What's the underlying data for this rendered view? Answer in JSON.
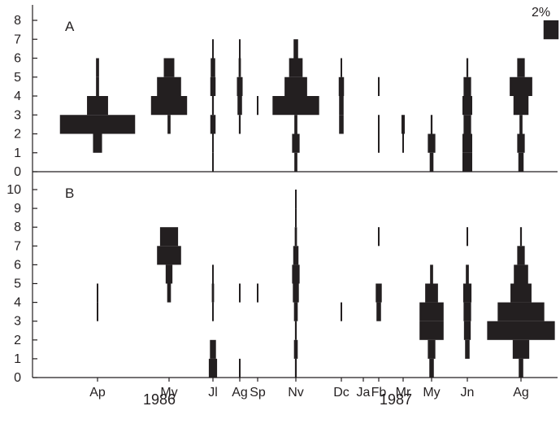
{
  "chart_data": {
    "type": "kite",
    "scale_label": "2%",
    "x_categories": [
      "Ap",
      "My",
      "Jl",
      "Ag",
      "Sp",
      "Nv",
      "Dc",
      "Ja",
      "Fb",
      "Mr",
      "My",
      "Jn",
      "Ag"
    ],
    "years": [
      "1986",
      "1987"
    ],
    "grid": false,
    "panels": [
      {
        "label": "A",
        "ylim": [
          0,
          8
        ],
        "yticks": [
          0,
          1,
          2,
          3,
          4,
          5,
          6,
          7,
          8
        ],
        "scale_bar": {
          "y_range": [
            7,
            8
          ],
          "value_percent": 2
        },
        "kites": [
          {
            "x": "Ap",
            "bins": [
              [
                1,
                2,
                0.6
              ],
              [
                2,
                3,
                5.0
              ],
              [
                3,
                4,
                1.4
              ],
              [
                4,
                5,
                0.2
              ],
              [
                5,
                6,
                0.2
              ]
            ]
          },
          {
            "x": "My",
            "bins": [
              [
                2,
                3,
                0.2
              ],
              [
                3,
                4,
                2.4
              ],
              [
                4,
                5,
                1.6
              ],
              [
                5,
                6,
                0.7
              ]
            ]
          },
          {
            "x": "Jl",
            "bins": [
              [
                0,
                1,
                0.06
              ],
              [
                1,
                2,
                0.1
              ],
              [
                2,
                3,
                0.35
              ],
              [
                3,
                4,
                0.12
              ],
              [
                4,
                5,
                0.35
              ],
              [
                5,
                6,
                0.3
              ],
              [
                6,
                7,
                0.1
              ]
            ]
          },
          {
            "x": "Ag",
            "bins": [
              [
                2,
                3,
                0.12
              ],
              [
                3,
                4,
                0.3
              ],
              [
                4,
                5,
                0.38
              ],
              [
                5,
                6,
                0.15
              ],
              [
                6,
                7,
                0.1
              ]
            ]
          },
          {
            "x": "Sp",
            "bins": [
              [
                3,
                4,
                0.1
              ]
            ]
          },
          {
            "x": "Nv",
            "bins": [
              [
                0,
                1,
                0.2
              ],
              [
                1,
                2,
                0.5
              ],
              [
                2,
                3,
                0.2
              ],
              [
                3,
                4,
                3.1
              ],
              [
                4,
                5,
                1.5
              ],
              [
                5,
                6,
                0.9
              ],
              [
                6,
                7,
                0.3
              ]
            ]
          },
          {
            "x": "Dc",
            "bins": [
              [
                2,
                3,
                0.3
              ],
              [
                3,
                4,
                0.3
              ],
              [
                4,
                5,
                0.35
              ],
              [
                5,
                6,
                0.1
              ]
            ]
          },
          {
            "x": "Fb",
            "bins": [
              [
                1,
                2,
                0.06
              ],
              [
                2,
                3,
                0.06
              ],
              [
                4,
                5,
                0.06
              ]
            ]
          },
          {
            "x": "Mr",
            "bins": [
              [
                1,
                2,
                0.06
              ],
              [
                2,
                3,
                0.22
              ]
            ]
          },
          {
            "x": "My",
            "bins": [
              [
                0,
                1,
                0.25
              ],
              [
                1,
                2,
                0.5
              ],
              [
                2,
                3,
                0.12
              ]
            ]
          },
          {
            "x": "Jn",
            "bins": [
              [
                0,
                1,
                0.65
              ],
              [
                1,
                2,
                0.65
              ],
              [
                2,
                3,
                0.5
              ],
              [
                3,
                4,
                0.65
              ],
              [
                4,
                5,
                0.5
              ],
              [
                5,
                6,
                0.12
              ]
            ]
          },
          {
            "x": "Ag",
            "bins": [
              [
                0,
                1,
                0.35
              ],
              [
                1,
                2,
                0.5
              ],
              [
                2,
                3,
                0.2
              ],
              [
                3,
                4,
                1.0
              ],
              [
                4,
                5,
                1.5
              ],
              [
                5,
                6,
                0.5
              ]
            ]
          }
        ]
      },
      {
        "label": "B",
        "ylim": [
          0,
          10
        ],
        "yticks": [
          0,
          1,
          2,
          3,
          4,
          5,
          6,
          7,
          8,
          9,
          10
        ],
        "kites": [
          {
            "x": "Ap",
            "bins": [
              [
                3,
                4,
                0.06
              ],
              [
                4,
                5,
                0.08
              ]
            ]
          },
          {
            "x": "My",
            "bins": [
              [
                4,
                5,
                0.25
              ],
              [
                5,
                6,
                0.45
              ],
              [
                6,
                7,
                1.6
              ],
              [
                7,
                8,
                1.2
              ]
            ]
          },
          {
            "x": "Jl",
            "bins": [
              [
                0,
                1,
                0.55
              ],
              [
                1,
                2,
                0.4
              ],
              [
                3,
                4,
                0.06
              ],
              [
                4,
                5,
                0.15
              ],
              [
                5,
                6,
                0.06
              ]
            ]
          },
          {
            "x": "Ag",
            "bins": [
              [
                0,
                1,
                0.06
              ],
              [
                4,
                5,
                0.06
              ]
            ]
          },
          {
            "x": "Sp",
            "bins": [
              [
                4,
                5,
                0.06
              ]
            ]
          },
          {
            "x": "Nv",
            "bins": [
              [
                0,
                1,
                0.12
              ],
              [
                1,
                2,
                0.25
              ],
              [
                2,
                3,
                0.12
              ],
              [
                3,
                4,
                0.25
              ],
              [
                4,
                5,
                0.4
              ],
              [
                5,
                6,
                0.5
              ],
              [
                6,
                7,
                0.35
              ],
              [
                7,
                8,
                0.15
              ],
              [
                8,
                9,
                0.06
              ],
              [
                9,
                10,
                0.06
              ]
            ]
          },
          {
            "x": "Dc",
            "bins": [
              [
                3,
                4,
                0.06
              ]
            ]
          },
          {
            "x": "Fb",
            "bins": [
              [
                3,
                4,
                0.3
              ],
              [
                4,
                5,
                0.4
              ],
              [
                7,
                8,
                0.06
              ]
            ]
          },
          {
            "x": "My",
            "bins": [
              [
                0,
                1,
                0.3
              ],
              [
                1,
                2,
                0.5
              ],
              [
                2,
                3,
                1.6
              ],
              [
                3,
                4,
                1.6
              ],
              [
                4,
                5,
                0.85
              ],
              [
                5,
                6,
                0.2
              ]
            ]
          },
          {
            "x": "Jn",
            "bins": [
              [
                1,
                2,
                0.3
              ],
              [
                2,
                3,
                0.45
              ],
              [
                3,
                4,
                0.5
              ],
              [
                4,
                5,
                0.55
              ],
              [
                5,
                6,
                0.2
              ],
              [
                7,
                8,
                0.06
              ]
            ]
          },
          {
            "x": "Ag",
            "bins": [
              [
                0,
                1,
                0.3
              ],
              [
                1,
                2,
                1.1
              ],
              [
                2,
                3,
                4.5
              ],
              [
                3,
                4,
                3.1
              ],
              [
                4,
                5,
                1.4
              ],
              [
                5,
                6,
                0.95
              ],
              [
                6,
                7,
                0.5
              ],
              [
                7,
                8,
                0.12
              ]
            ]
          }
        ]
      }
    ]
  }
}
